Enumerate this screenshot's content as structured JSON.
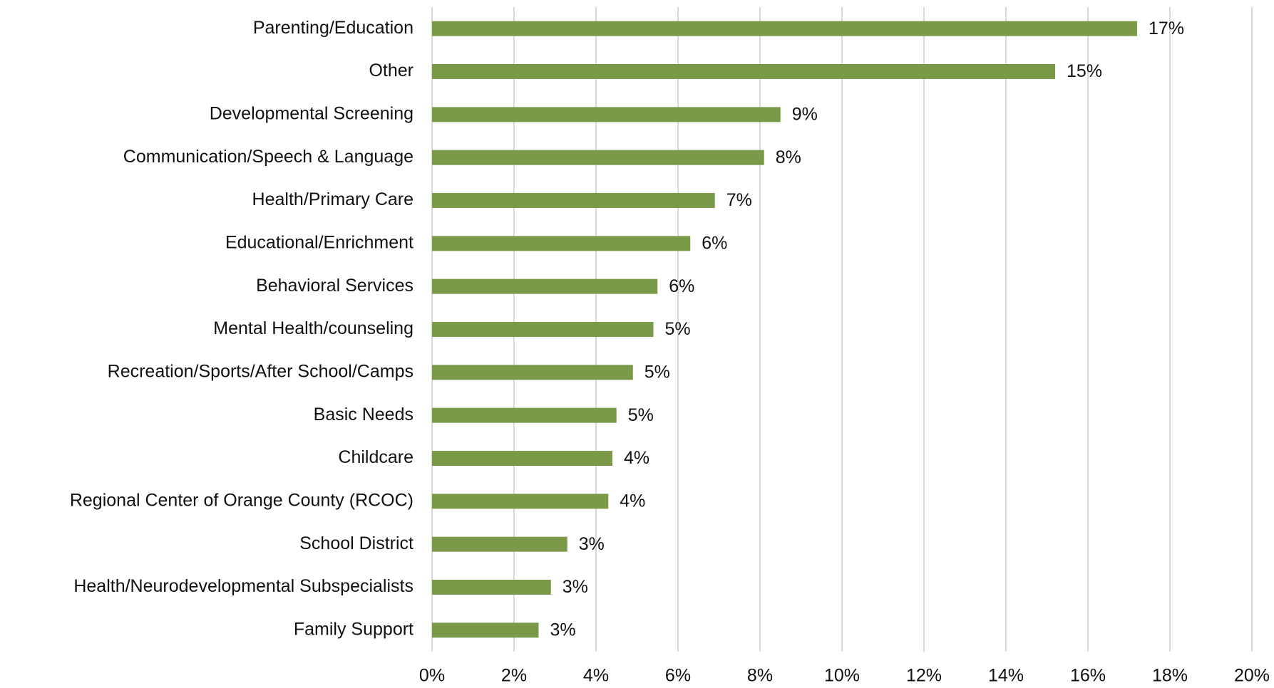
{
  "chart_data": {
    "type": "bar",
    "orientation": "horizontal",
    "categories": [
      "Parenting/Education",
      "Other",
      "Developmental Screening",
      "Communication/Speech & Language",
      "Health/Primary Care",
      "Educational/Enrichment",
      "Behavioral Services",
      "Mental Health/counseling",
      "Recreation/Sports/After School/Camps",
      "Basic Needs",
      "Childcare",
      "Regional Center of Orange County (RCOC)",
      "School District",
      "Health/Neurodevelopmental Subspecialists",
      "Family Support"
    ],
    "values": [
      17.2,
      15.2,
      8.5,
      8.1,
      6.9,
      6.3,
      5.5,
      5.4,
      4.9,
      4.5,
      4.4,
      4.3,
      3.3,
      2.9,
      2.6
    ],
    "value_labels": [
      "17%",
      "15%",
      "9%",
      "8%",
      "7%",
      "6%",
      "6%",
      "5%",
      "5%",
      "5%",
      "4%",
      "4%",
      "3%",
      "3%",
      "3%"
    ],
    "color": "#7a9a4a",
    "xlim": [
      0,
      20
    ],
    "xticks": [
      {
        "value": 0,
        "label": "0%"
      },
      {
        "value": 2,
        "label": "2%"
      },
      {
        "value": 4,
        "label": "4%"
      },
      {
        "value": 6,
        "label": "6%"
      },
      {
        "value": 8,
        "label": "8%"
      },
      {
        "value": 10,
        "label": "10%"
      },
      {
        "value": 12,
        "label": "12%"
      },
      {
        "value": 14,
        "label": "14%"
      },
      {
        "value": 16,
        "label": "16%"
      },
      {
        "value": 18,
        "label": "18%"
      },
      {
        "value": 20,
        "label": "20%"
      }
    ],
    "grid": true
  }
}
